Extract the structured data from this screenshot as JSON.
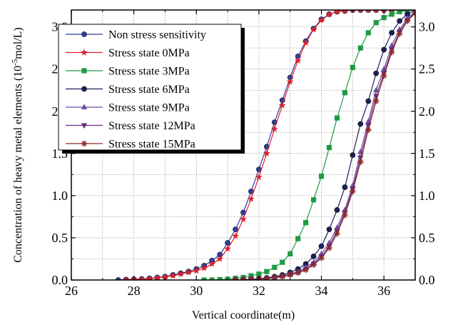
{
  "chart_data": {
    "type": "line",
    "title": "",
    "xlabel": "Vertical coordinate(m)",
    "ylabel_main": "Concentration of heavy metal elements (10",
    "ylabel_sup": "-5",
    "ylabel_tail": "mol/L)",
    "xlim": [
      26,
      37
    ],
    "ylim": [
      0,
      3.2
    ],
    "xticks": [
      26,
      28,
      30,
      32,
      34,
      36
    ],
    "xtick_labels": [
      "26",
      "28",
      "30",
      "32",
      "34",
      "36"
    ],
    "yticks": [
      0,
      0.5,
      1.0,
      1.5,
      2.0,
      2.5,
      3.0
    ],
    "ytick_labels": [
      "0.0",
      "0.5",
      "1.0",
      "1.5",
      "2.0",
      "2.5",
      "3.0"
    ],
    "grid": true,
    "legend_position": "top-left",
    "series": [
      {
        "name": "Non stress sensitivity",
        "color": "#2b3ea0",
        "marker": "circle",
        "x": [
          27.5,
          27.75,
          28.0,
          28.25,
          28.5,
          28.75,
          29.0,
          29.25,
          29.5,
          29.75,
          30.0,
          30.25,
          30.5,
          30.75,
          31.0,
          31.25,
          31.5,
          31.75,
          32.0,
          32.25,
          32.5,
          32.75,
          33.0,
          33.25,
          33.5,
          33.75,
          34.0,
          34.25,
          34.5,
          34.75,
          35.0,
          35.25,
          35.5,
          35.75,
          36.0,
          36.25,
          36.5,
          36.75,
          37.0
        ],
        "y": [
          0.0,
          0.005,
          0.008,
          0.012,
          0.02,
          0.03,
          0.04,
          0.06,
          0.08,
          0.1,
          0.13,
          0.17,
          0.23,
          0.3,
          0.44,
          0.6,
          0.8,
          1.05,
          1.31,
          1.58,
          1.87,
          2.13,
          2.4,
          2.65,
          2.83,
          2.98,
          3.09,
          3.15,
          3.18,
          3.19,
          3.2,
          3.2,
          3.2,
          3.2,
          3.2,
          3.2,
          3.2,
          3.2,
          3.2
        ]
      },
      {
        "name": "Stress state 0MPa",
        "color": "#e0202a",
        "marker": "star",
        "x": [
          27.75,
          28.0,
          28.25,
          28.5,
          28.75,
          29.0,
          29.25,
          29.5,
          29.75,
          30.0,
          30.25,
          30.5,
          30.75,
          31.0,
          31.25,
          31.5,
          31.75,
          32.0,
          32.25,
          32.5,
          32.75,
          33.0,
          33.25,
          33.5,
          33.75,
          34.0,
          34.25,
          34.5,
          34.75,
          35.0,
          35.25,
          35.5,
          35.75,
          36.0,
          36.25,
          36.5,
          36.75,
          37.0
        ],
        "y": [
          0.0,
          0.005,
          0.008,
          0.015,
          0.025,
          0.035,
          0.05,
          0.07,
          0.09,
          0.11,
          0.14,
          0.19,
          0.25,
          0.37,
          0.52,
          0.72,
          0.96,
          1.22,
          1.5,
          1.79,
          2.07,
          2.35,
          2.6,
          2.81,
          2.97,
          3.08,
          3.15,
          3.18,
          3.19,
          3.2,
          3.2,
          3.2,
          3.2,
          3.2,
          3.2,
          3.2,
          3.2,
          3.2
        ]
      },
      {
        "name": "Stress state 3MPa",
        "color": "#1f9a44",
        "marker": "square",
        "x": [
          30.25,
          30.5,
          30.75,
          31.0,
          31.25,
          31.5,
          31.75,
          32.0,
          32.25,
          32.5,
          32.75,
          33.0,
          33.25,
          33.5,
          33.75,
          34.0,
          34.25,
          34.5,
          34.75,
          35.0,
          35.25,
          35.5,
          35.75,
          36.0,
          36.25,
          36.5,
          36.75,
          37.0
        ],
        "y": [
          0.0,
          0.0,
          0.005,
          0.01,
          0.02,
          0.03,
          0.05,
          0.07,
          0.1,
          0.15,
          0.21,
          0.31,
          0.49,
          0.68,
          0.95,
          1.23,
          1.57,
          1.92,
          2.22,
          2.52,
          2.75,
          2.93,
          3.05,
          3.11,
          3.15,
          3.18,
          3.19,
          3.2
        ]
      },
      {
        "name": "Stress state 6MPa",
        "color": "#1b1f5a",
        "marker": "circle",
        "x": [
          31.25,
          31.5,
          31.75,
          32.0,
          32.25,
          32.5,
          32.75,
          33.0,
          33.25,
          33.5,
          33.75,
          34.0,
          34.25,
          34.5,
          34.75,
          35.0,
          35.25,
          35.5,
          35.75,
          36.0,
          36.25,
          36.5,
          36.75,
          37.0
        ],
        "y": [
          0.0,
          0.005,
          0.01,
          0.015,
          0.025,
          0.04,
          0.06,
          0.09,
          0.13,
          0.19,
          0.28,
          0.4,
          0.6,
          0.83,
          1.1,
          1.48,
          1.85,
          2.12,
          2.45,
          2.73,
          2.93,
          3.07,
          3.15,
          3.2
        ]
      },
      {
        "name": "Stress state 9MPa",
        "color": "#6a4fa5",
        "marker": "triangle-up",
        "x": [
          31.25,
          31.5,
          31.75,
          32.0,
          32.25,
          32.5,
          32.75,
          33.0,
          33.25,
          33.5,
          33.75,
          34.0,
          34.25,
          34.5,
          34.75,
          35.0,
          35.25,
          35.5,
          35.75,
          36.0,
          36.25,
          36.5,
          36.75,
          37.0
        ],
        "y": [
          0.0,
          0.005,
          0.008,
          0.012,
          0.02,
          0.03,
          0.05,
          0.07,
          0.1,
          0.15,
          0.21,
          0.31,
          0.44,
          0.62,
          0.83,
          1.12,
          1.52,
          1.88,
          2.25,
          2.5,
          2.78,
          2.97,
          3.1,
          3.18
        ]
      },
      {
        "name": "Stress state 12MPa",
        "color": "#6a2a7a",
        "marker": "triangle-down",
        "x": [
          31.25,
          31.5,
          31.75,
          32.0,
          32.25,
          32.5,
          32.75,
          33.0,
          33.25,
          33.5,
          33.75,
          34.0,
          34.25,
          34.5,
          34.75,
          35.0,
          35.25,
          35.5,
          35.75,
          36.0,
          36.25,
          36.5,
          36.75,
          37.0
        ],
        "y": [
          0.0,
          0.004,
          0.007,
          0.01,
          0.018,
          0.027,
          0.045,
          0.065,
          0.09,
          0.13,
          0.19,
          0.28,
          0.4,
          0.58,
          0.8,
          1.08,
          1.45,
          1.83,
          2.18,
          2.45,
          2.73,
          2.94,
          3.08,
          3.17
        ]
      },
      {
        "name": "Stress state 15MPa",
        "color": "#8a2a2a",
        "marker": "asterisk",
        "x": [
          31.25,
          31.5,
          31.75,
          32.0,
          32.25,
          32.5,
          32.75,
          33.0,
          33.25,
          33.5,
          33.75,
          34.0,
          34.25,
          34.5,
          34.75,
          35.0,
          35.25,
          35.5,
          35.75,
          36.0,
          36.25,
          36.5,
          36.75,
          37.0
        ],
        "y": [
          0.0,
          0.003,
          0.006,
          0.009,
          0.016,
          0.024,
          0.04,
          0.06,
          0.085,
          0.12,
          0.18,
          0.26,
          0.38,
          0.55,
          0.77,
          1.05,
          1.4,
          1.78,
          2.12,
          2.42,
          2.7,
          2.92,
          3.07,
          3.16
        ]
      }
    ]
  }
}
